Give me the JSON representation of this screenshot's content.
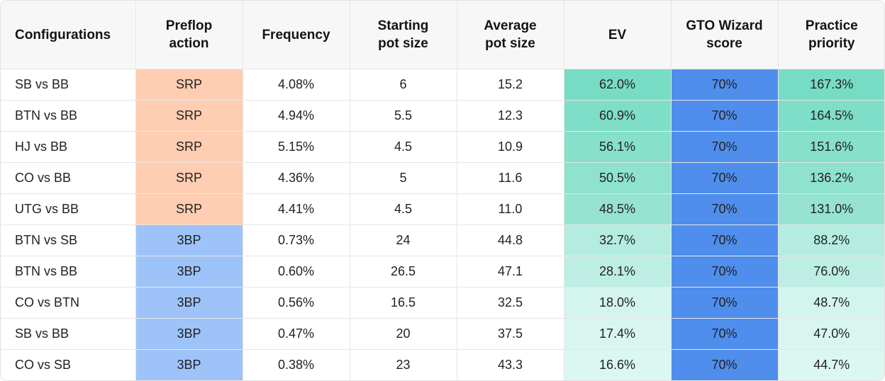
{
  "headers": [
    "Configurations",
    "Preflop\naction",
    "Frequency",
    "Starting\npot size",
    "Average\npot size",
    "EV",
    "GTO Wizard\nscore",
    "Practice\npriority"
  ],
  "colors": {
    "srp": "#ffcdb1",
    "threebp": "#9dc3f9",
    "gto": "#4f8eec",
    "ev_levels": [
      "#76dcc3",
      "#7fdec7",
      "#86e0ca",
      "#8fe2cd",
      "#95e3d0",
      "#b5ece0",
      "#bdeee3",
      "#d4f5ee",
      "#d8f6ef",
      "#dbf7f1"
    ]
  },
  "rows": [
    {
      "config": "SB vs BB",
      "action": "SRP",
      "frequency": "4.08%",
      "start_pot": "6",
      "avg_pot": "15.2",
      "ev": "62.0%",
      "gto": "70%",
      "priority": "167.3%"
    },
    {
      "config": "BTN vs BB",
      "action": "SRP",
      "frequency": "4.94%",
      "start_pot": "5.5",
      "avg_pot": "12.3",
      "ev": "60.9%",
      "gto": "70%",
      "priority": "164.5%"
    },
    {
      "config": "HJ vs BB",
      "action": "SRP",
      "frequency": "5.15%",
      "start_pot": "4.5",
      "avg_pot": "10.9",
      "ev": "56.1%",
      "gto": "70%",
      "priority": "151.6%"
    },
    {
      "config": "CO vs BB",
      "action": "SRP",
      "frequency": "4.36%",
      "start_pot": "5",
      "avg_pot": "11.6",
      "ev": "50.5%",
      "gto": "70%",
      "priority": "136.2%"
    },
    {
      "config": "UTG vs BB",
      "action": "SRP",
      "frequency": "4.41%",
      "start_pot": "4.5",
      "avg_pot": "11.0",
      "ev": "48.5%",
      "gto": "70%",
      "priority": "131.0%"
    },
    {
      "config": "BTN vs SB",
      "action": "3BP",
      "frequency": "0.73%",
      "start_pot": "24",
      "avg_pot": "44.8",
      "ev": "32.7%",
      "gto": "70%",
      "priority": "88.2%"
    },
    {
      "config": "BTN vs BB",
      "action": "3BP",
      "frequency": "0.60%",
      "start_pot": "26.5",
      "avg_pot": "47.1",
      "ev": "28.1%",
      "gto": "70%",
      "priority": "76.0%"
    },
    {
      "config": "CO vs BTN",
      "action": "3BP",
      "frequency": "0.56%",
      "start_pot": "16.5",
      "avg_pot": "32.5",
      "ev": "18.0%",
      "gto": "70%",
      "priority": "48.7%"
    },
    {
      "config": "SB vs BB",
      "action": "3BP",
      "frequency": "0.47%",
      "start_pot": "20",
      "avg_pot": "37.5",
      "ev": "17.4%",
      "gto": "70%",
      "priority": "47.0%"
    },
    {
      "config": "CO vs SB",
      "action": "3BP",
      "frequency": "0.38%",
      "start_pot": "23",
      "avg_pot": "43.3",
      "ev": "16.6%",
      "gto": "70%",
      "priority": "44.7%"
    }
  ]
}
